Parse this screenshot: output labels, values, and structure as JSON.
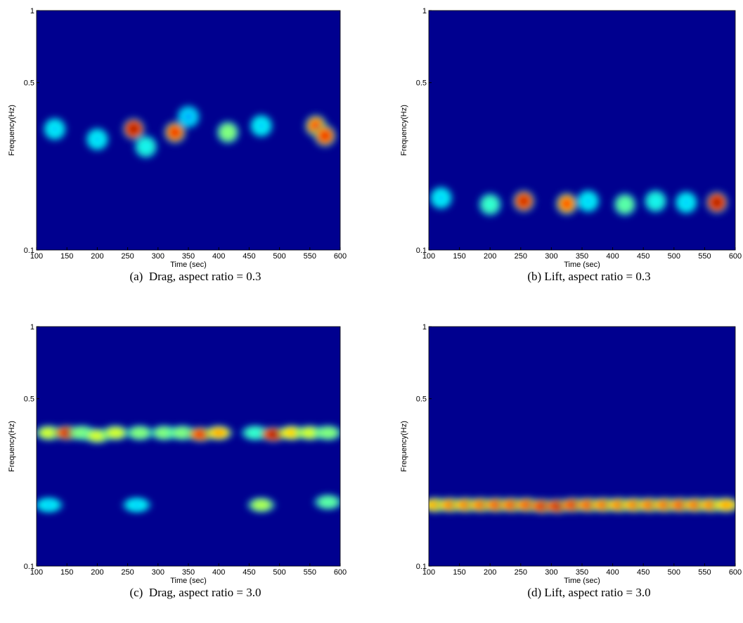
{
  "chart_data": [
    {
      "type": "spectrogram",
      "caption": "(a)  Drag, aspect ratio = 0.3",
      "xlabel": "Time (sec)",
      "ylabel": "Frequency(Hz)",
      "xlim": [
        100,
        600
      ],
      "ylim": [
        0.1,
        1
      ],
      "log_y": true,
      "background": "#00008f",
      "xticks": [
        100,
        150,
        200,
        250,
        300,
        350,
        400,
        450,
        500,
        550,
        600
      ],
      "yticks": [
        0.1,
        0.5,
        1
      ],
      "x": [
        260,
        328,
        415,
        560,
        575,
        130,
        200,
        350,
        470,
        280
      ],
      "y": [
        0.32,
        0.31,
        0.31,
        0.33,
        0.3,
        0.32,
        0.29,
        0.36,
        0.33,
        0.27
      ],
      "values": [
        1.0,
        0.9,
        0.5,
        0.85,
        0.9,
        0.3,
        0.3,
        0.25,
        0.3,
        0.35
      ]
    },
    {
      "type": "spectrogram",
      "caption": "(b) Lift, aspect ratio = 0.3",
      "xlabel": "Time (sec)",
      "ylabel": "Frequency(Hz)",
      "xlim": [
        100,
        600
      ],
      "ylim": [
        0.1,
        1
      ],
      "log_y": true,
      "background": "#00008f",
      "xticks": [
        100,
        150,
        200,
        250,
        300,
        350,
        400,
        450,
        500,
        550,
        600
      ],
      "yticks": [
        0.1,
        0.5,
        1
      ],
      "x": [
        255,
        325,
        570,
        420,
        200,
        120,
        470,
        360,
        520
      ],
      "y": [
        0.16,
        0.156,
        0.158,
        0.155,
        0.155,
        0.165,
        0.16,
        0.16,
        0.158
      ],
      "values": [
        0.95,
        0.85,
        1.0,
        0.45,
        0.4,
        0.3,
        0.35,
        0.3,
        0.3
      ]
    },
    {
      "type": "spectrogram",
      "caption": "(c)  Drag, aspect ratio = 3.0",
      "xlabel": "Time (sec)",
      "ylabel": "Frequency(Hz)",
      "xlim": [
        100,
        600
      ],
      "ylim": [
        0.1,
        1
      ],
      "log_y": true,
      "background": "#00008f",
      "xticks": [
        100,
        150,
        200,
        250,
        300,
        350,
        400,
        450,
        500,
        550,
        600
      ],
      "yticks": [
        0.1,
        0.5,
        1
      ],
      "x": [
        120,
        150,
        175,
        200,
        230,
        270,
        310,
        340,
        370,
        400,
        460,
        490,
        520,
        550,
        580,
        470,
        580,
        120,
        265
      ],
      "y": [
        0.36,
        0.36,
        0.36,
        0.35,
        0.36,
        0.36,
        0.36,
        0.36,
        0.355,
        0.36,
        0.36,
        0.355,
        0.36,
        0.36,
        0.36,
        0.18,
        0.185,
        0.18,
        0.18
      ],
      "values": [
        0.6,
        0.95,
        0.5,
        0.6,
        0.6,
        0.5,
        0.5,
        0.5,
        0.9,
        0.75,
        0.4,
        1.0,
        0.7,
        0.6,
        0.5,
        0.55,
        0.45,
        0.3,
        0.3
      ]
    },
    {
      "type": "spectrogram",
      "caption": "(d) Lift, aspect ratio = 3.0",
      "xlabel": "Time (sec)",
      "ylabel": "Frequency(Hz)",
      "xlim": [
        100,
        600
      ],
      "ylim": [
        0.1,
        1
      ],
      "log_y": true,
      "background": "#00008f",
      "xticks": [
        100,
        150,
        200,
        250,
        300,
        350,
        400,
        450,
        500,
        550,
        600
      ],
      "yticks": [
        0.1,
        0.5,
        1
      ],
      "x": [
        110,
        135,
        160,
        185,
        210,
        235,
        260,
        285,
        310,
        335,
        360,
        385,
        410,
        435,
        460,
        485,
        510,
        535,
        560,
        585
      ],
      "y": [
        0.18,
        0.18,
        0.18,
        0.18,
        0.18,
        0.18,
        0.18,
        0.178,
        0.178,
        0.18,
        0.18,
        0.18,
        0.18,
        0.18,
        0.18,
        0.18,
        0.18,
        0.18,
        0.18,
        0.18
      ],
      "values": [
        0.75,
        0.8,
        0.8,
        0.82,
        0.85,
        0.85,
        0.85,
        0.92,
        0.95,
        0.9,
        0.85,
        0.82,
        0.8,
        0.8,
        0.82,
        0.82,
        0.85,
        0.82,
        0.8,
        0.75
      ]
    }
  ]
}
